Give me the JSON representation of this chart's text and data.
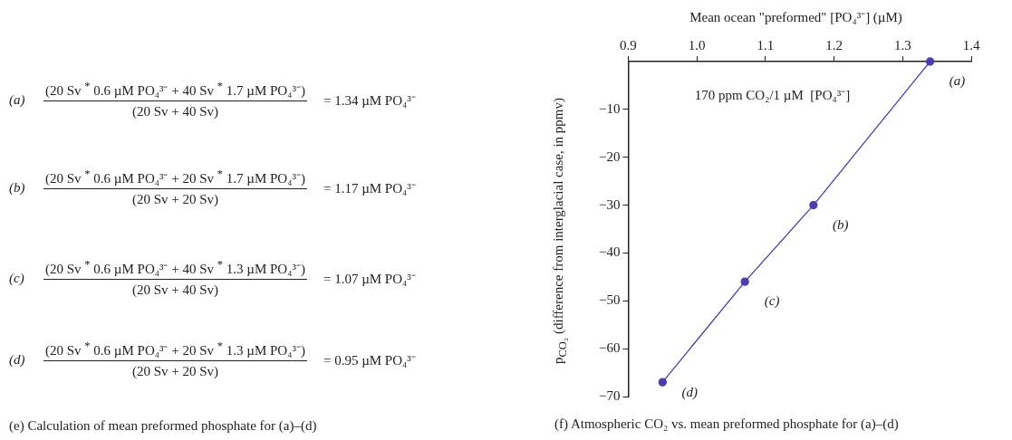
{
  "chart_data": [
    {
      "type": "other",
      "title": "(e)  Calculation of mean preformed phosphate for (a)–(d)",
      "annotations": [
        "(a)",
        "(20 Sv $^{*}$ 0.6 µM PO₄³⁻ + 40 Sv $^{*}$ 1.7 µM PO₄³⁻)",
        "(20 Sv + 40 Sv)",
        "= 1.34 µM PO₄³⁻",
        "(b)",
        "(20 Sv $^{*}$ 0.6 µM PO₄³⁻ + 20 Sv $^{*}$ 1.7 µM PO₄³⁻)",
        "(20 Sv + 20 Sv)",
        "= 1.17 µM PO₄³⁻",
        "(c)",
        "(20 Sv $^{*}$ 0.6 µM PO₄³⁻ + 40 Sv $^{*}$ 1.3 µM PO₄³⁻)",
        "(20 Sv + 40 Sv)",
        "= 1.07 µM PO₄³⁻",
        "(d)",
        "(20 Sv $^{*}$ 0.6 µM PO₄³⁻ + 20 Sv $^{*}$ 1.3 µM PO₄³⁻)",
        "(20 Sv + 20 Sv)",
        "= 0.95 µM PO₄³⁻"
      ]
    },
    {
      "type": "line",
      "title": "(f)  Atmospheric CO₂ vs. mean preformed phosphate for (a)–(d)",
      "xlabel": "Mean ocean \"preformed\" [PO₄³⁻] (µM)",
      "ylabel": "p$_{CO₂}$ (difference from interglacial case, in ppmv)",
      "series": [
        {
          "color": "#4a3ea8",
          "x": [
            1.34,
            1.17,
            1.07,
            0.95
          ],
          "values": [
            0,
            -30,
            -46,
            -67
          ]
        }
      ],
      "xlim": [
        0.9,
        1.4
      ],
      "xticks": [
        {
          "value": 0.9,
          "label": "0.9"
        },
        {
          "value": 1.0,
          "label": "1.0"
        },
        {
          "value": 1.1,
          "label": "1.1"
        },
        {
          "value": 1.2,
          "label": "1.2"
        },
        {
          "value": 1.3,
          "label": "1.3"
        },
        {
          "value": 1.4,
          "label": "1.4"
        }
      ],
      "ylim": [
        -70,
        0
      ],
      "yticks": [
        -70,
        -60,
        -50,
        -40,
        -30,
        -20,
        -10
      ],
      "marker": "circle",
      "line_style": "solid",
      "annotations": [
        "170 ppm CO₂/1 µM  [PO₄³⁻]",
        {
          "text": "(a)",
          "x": 1.34,
          "y": 0
        },
        {
          "text": "(b)",
          "x": 1.17,
          "y": -30
        },
        {
          "text": "(c)",
          "x": 1.07,
          "y": -46
        },
        {
          "text": "(d)",
          "x": 0.95,
          "y": -67
        }
      ]
    }
  ]
}
